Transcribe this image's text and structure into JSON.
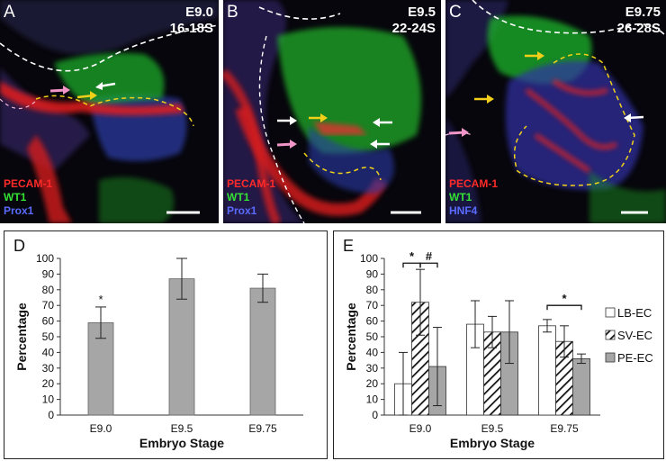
{
  "panels": [
    {
      "letter": "A",
      "stage": "E9.0",
      "somites": "16-18S",
      "markers": [
        "PECAM-1",
        "WT1",
        "Prox1"
      ]
    },
    {
      "letter": "B",
      "stage": "E9.5",
      "somites": "22-24S",
      "markers": [
        "PECAM-1",
        "WT1",
        "Prox1"
      ]
    },
    {
      "letter": "C",
      "stage": "E9.75",
      "somites": "26-28S",
      "markers": [
        "PECAM-1",
        "WT1",
        "HNF4"
      ]
    }
  ],
  "marker_colors": {
    "PECAM-1": "#ff2a2a",
    "WT1": "#34e234",
    "Prox1": "#5a6cff",
    "HNF4": "#5a6cff"
  },
  "chart_data": [
    {
      "letter": "D",
      "type": "bar",
      "categories": [
        "E9.0",
        "E9.5",
        "E9.75"
      ],
      "values": [
        59,
        87,
        81
      ],
      "errors": [
        10,
        13,
        9
      ],
      "significance": [
        "*",
        "",
        ""
      ],
      "xlabel": "Embryo Stage",
      "ylabel": "Percentage",
      "ylim": [
        0,
        100
      ],
      "yticks": [
        0,
        10,
        20,
        30,
        40,
        50,
        60,
        70,
        80,
        90,
        100
      ],
      "bar_color": "#a6a6a6"
    },
    {
      "letter": "E",
      "type": "bar",
      "categories": [
        "E9.0",
        "E9.5",
        "E9.75"
      ],
      "series": [
        {
          "name": "LB-EC",
          "values": [
            20,
            58,
            57
          ],
          "errors": [
            20,
            15,
            4
          ],
          "fill": "white"
        },
        {
          "name": "SV-EC",
          "values": [
            72,
            53,
            47
          ],
          "errors": [
            21,
            10,
            10
          ],
          "fill": "hatch"
        },
        {
          "name": "PE-EC",
          "values": [
            31,
            53,
            36
          ],
          "errors": [
            25,
            20,
            3
          ],
          "fill": "gray"
        }
      ],
      "significance": [
        "*",
        "#",
        "*"
      ],
      "xlabel": "Embryo Stage",
      "ylabel": "Percentage",
      "ylim": [
        0,
        100
      ],
      "yticks": [
        0,
        10,
        20,
        30,
        40,
        50,
        60,
        70,
        80,
        90,
        100
      ],
      "legend_position": "right"
    }
  ]
}
